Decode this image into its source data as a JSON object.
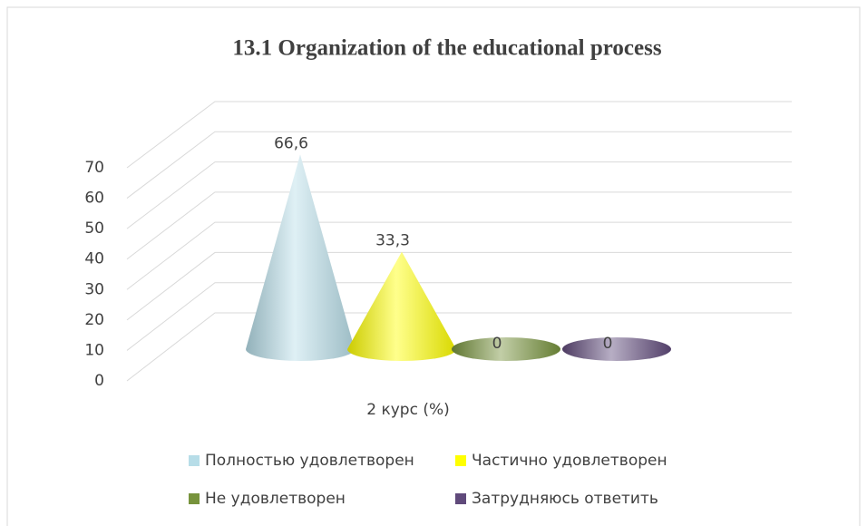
{
  "chart_data": {
    "type": "cone",
    "title": "13.1 Organization of the educational process",
    "categories": [
      "2 курс (%)"
    ],
    "series": [
      {
        "name": "Полностью удовлетворен",
        "color": "#b7dde8",
        "values": [
          66.6
        ],
        "value_labels": [
          "66,6"
        ]
      },
      {
        "name": "Частично удовлетворен",
        "color": "#ffff00",
        "values": [
          33.3
        ],
        "value_labels": [
          "33,3"
        ]
      },
      {
        "name": "Не удовлетворен",
        "color": "#77933c",
        "values": [
          0
        ],
        "value_labels": [
          "0"
        ]
      },
      {
        "name": "Затрудняюсь ответить",
        "color": "#604a7b",
        "values": [
          0
        ],
        "value_labels": [
          "0"
        ]
      }
    ],
    "ylim": [
      0,
      70
    ],
    "yticks": [
      0,
      10,
      20,
      30,
      40,
      50,
      60,
      70
    ],
    "grid": true,
    "legend": "bottom"
  }
}
